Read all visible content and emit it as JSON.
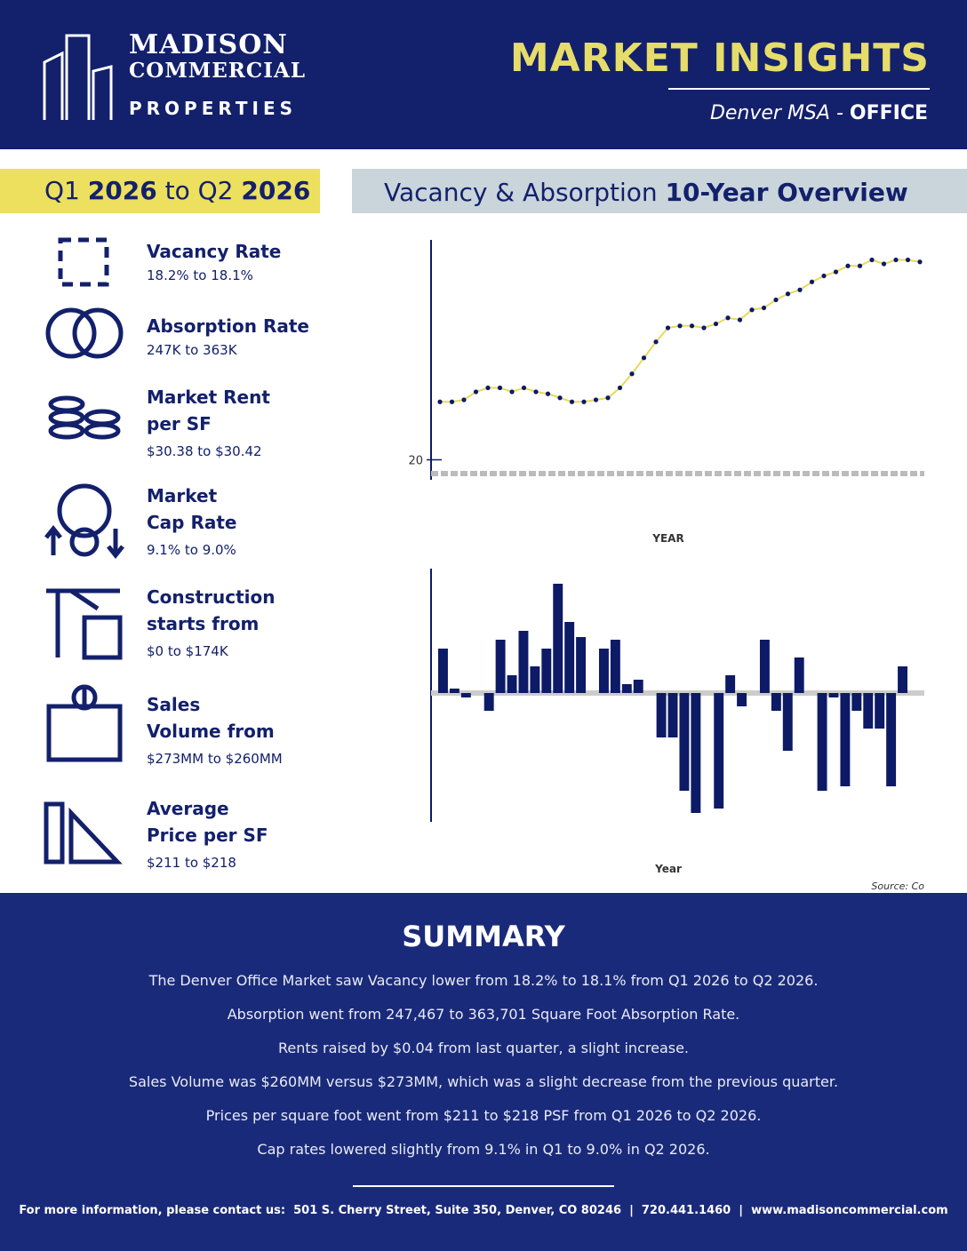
{
  "header": {
    "logo_line1": "MADISON",
    "logo_line2": "COMMERCIAL",
    "logo_line3": "PROPERTIES",
    "title": "MARKET INSIGHTS",
    "subtitle_region": "Denver MSA - ",
    "subtitle_type": "OFFICE"
  },
  "period": {
    "q_start": "Q1",
    "year_start": "2026",
    "to": "to",
    "q_end": "Q2",
    "year_end": "2026"
  },
  "section_title": {
    "light": "Vacancy & Absorption",
    "bold": "10-Year Overview"
  },
  "metrics": [
    {
      "label_lines": [
        "Vacancy Rate"
      ],
      "detail": "18.2% to 18.1%"
    },
    {
      "label_lines": [
        "Absorption Rate"
      ],
      "detail": "247K to 363K"
    },
    {
      "label_lines": [
        "Market Rent",
        "per SF"
      ],
      "detail": "$30.38 to $30.42"
    },
    {
      "label_lines": [
        "Market",
        "Cap Rate"
      ],
      "detail": "9.1% to 9.0%"
    },
    {
      "label_lines": [
        "Construction",
        "starts from"
      ],
      "detail": "$0 to $174K"
    },
    {
      "label_lines": [
        "Sales",
        "Volume from"
      ],
      "detail": "$273MM to $260MM"
    },
    {
      "label_lines": [
        "Average",
        "Price per SF"
      ],
      "detail": "$211 to $218"
    }
  ],
  "chart_data": [
    {
      "type": "line",
      "x_label": "YEAR",
      "color": "#0d1a66",
      "line_color": "#e8d95a",
      "categories": [
        null,
        null,
        null,
        null,
        null,
        null,
        null,
        null,
        null,
        null,
        null,
        null,
        null,
        null,
        null,
        null,
        null,
        null,
        null,
        null,
        null,
        null,
        null,
        null,
        null,
        null,
        null,
        null,
        null,
        null,
        null,
        null,
        null,
        null,
        null,
        null,
        null,
        null,
        null,
        null,
        null
      ],
      "values": [
        22.9,
        22.9,
        23.0,
        23.4,
        23.6,
        23.6,
        23.4,
        23.6,
        23.4,
        23.3,
        23.1,
        22.9,
        22.9,
        23.0,
        23.1,
        23.6,
        24.3,
        25.1,
        25.9,
        26.6,
        26.7,
        26.7,
        26.6,
        26.8,
        27.1,
        27.0,
        27.5,
        27.6,
        28.0,
        28.3,
        28.5,
        28.9,
        29.2,
        29.4,
        29.7,
        29.7,
        30.0,
        29.8,
        30.0,
        30.0,
        29.9
      ],
      "ylim": [
        19,
        31
      ],
      "yticks": [
        20
      ]
    },
    {
      "type": "bar",
      "x_label": "Year",
      "source": "Source: Co",
      "color": "#0d1a66",
      "categories": [
        null,
        null,
        null,
        null,
        null,
        null,
        null,
        null,
        null,
        null,
        null,
        null,
        null,
        null,
        null,
        null,
        null,
        null,
        null,
        null,
        null,
        null,
        null,
        null,
        null,
        null,
        null,
        null,
        null,
        null,
        null,
        null,
        null,
        null,
        null,
        null,
        null,
        null,
        null,
        null,
        null
      ],
      "values": [
        500,
        50,
        -50,
        0,
        -200,
        600,
        200,
        700,
        300,
        500,
        1230,
        800,
        630,
        0,
        500,
        600,
        100,
        150,
        0,
        -500,
        -500,
        -1100,
        -1350,
        0,
        -1300,
        200,
        -150,
        0,
        600,
        -200,
        -650,
        400,
        0,
        -1100,
        -50,
        -1050,
        -200,
        -400,
        -400,
        -1050,
        300
      ],
      "ylim": [
        -1450,
        1400
      ]
    }
  ],
  "summary": {
    "title": "SUMMARY",
    "lines": [
      "The Denver Office Market saw Vacancy lower from 18.2% to 18.1% from Q1 2026 to Q2 2026.",
      "Absorption went from 247,467 to 363,701 Square Foot Absorption Rate.",
      "Rents raised by $0.04 from last quarter, a slight increase.",
      "Sales Volume was $260MM versus $273MM, which was a slight decrease from the previous quarter.",
      "Prices per square foot went from $211 to $218 PSF from Q1 2026 to Q2 2026.",
      "Cap rates lowered slightly from 9.1% in Q1 to 9.0% in Q2 2026."
    ]
  },
  "footer": {
    "text": "For more information, please contact us:  501 S. Cherry Street, Suite 350, Denver, CO 80246  |  720.441.1460  |  www.madisoncommercial.com"
  }
}
